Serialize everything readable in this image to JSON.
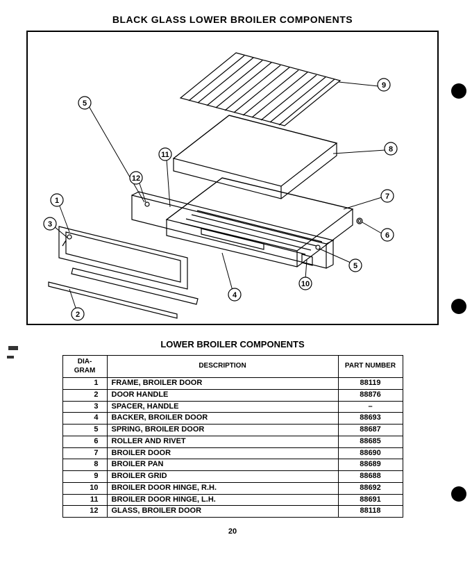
{
  "main_title": "BLACK GLASS LOWER BROILER COMPONENTS",
  "sub_title": "LOWER BROILER COMPONENTS",
  "page_number": "20",
  "table": {
    "headers": {
      "diagram": "DIA-\nGRAM",
      "description": "DESCRIPTION",
      "part": "PART\nNUMBER"
    },
    "rows": [
      {
        "dia": "1",
        "desc": "FRAME, BROILER DOOR",
        "part": "88119"
      },
      {
        "dia": "2",
        "desc": "DOOR HANDLE",
        "part": "88876"
      },
      {
        "dia": "3",
        "desc": "SPACER, HANDLE",
        "part": "–"
      },
      {
        "dia": "4",
        "desc": "BACKER, BROILER DOOR",
        "part": "88693"
      },
      {
        "dia": "5",
        "desc": "SPRING, BROILER DOOR",
        "part": "88687"
      },
      {
        "dia": "6",
        "desc": "ROLLER AND RIVET",
        "part": "88685"
      },
      {
        "dia": "7",
        "desc": "BROILER DOOR",
        "part": "88690"
      },
      {
        "dia": "8",
        "desc": "BROILER PAN",
        "part": "88689"
      },
      {
        "dia": "9",
        "desc": "BROILER GRID",
        "part": "88688"
      },
      {
        "dia": "10",
        "desc": "BROILER DOOR HINGE, R.H.",
        "part": "88692"
      },
      {
        "dia": "11",
        "desc": "BROILER DOOR HINGE, L.H.",
        "part": "88691"
      },
      {
        "dia": "12",
        "desc": "GLASS, BROILER DOOR",
        "part": "88118"
      }
    ]
  },
  "callouts": [
    "1",
    "2",
    "3",
    "4",
    "5",
    "6",
    "7",
    "8",
    "9",
    "10",
    "11",
    "12"
  ],
  "diagram_style": {
    "stroke": "#000000",
    "stroke_width": 1.2,
    "callout_radius": 9,
    "callout_font_size": 11,
    "grid_lines": 11
  }
}
